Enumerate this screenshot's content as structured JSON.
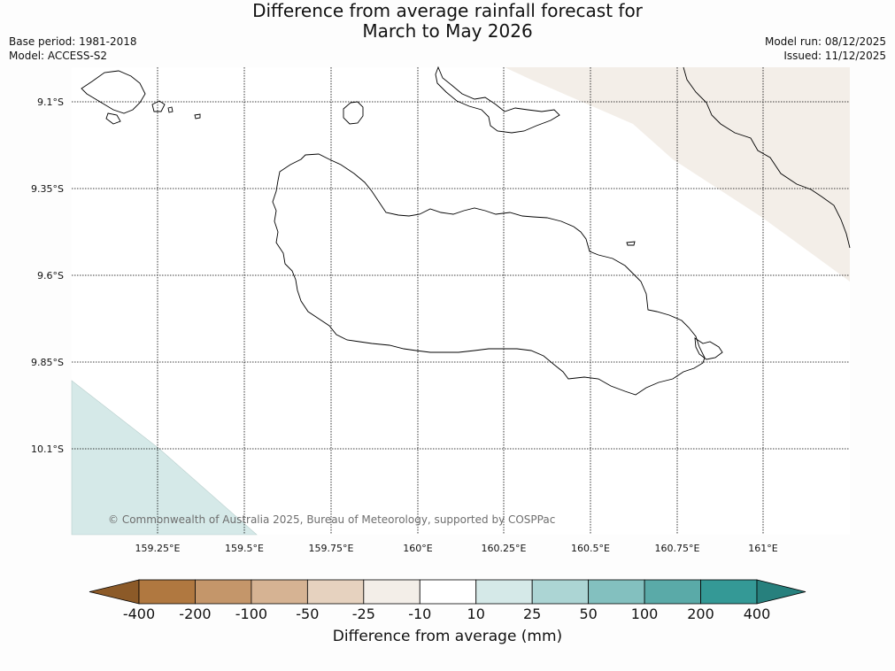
{
  "title": {
    "line1": "Difference from average rainfall forecast for",
    "line2": "March to May 2026"
  },
  "meta": {
    "base_period": "Base period: 1981-2018",
    "model": "Model: ACCESS-S2",
    "model_run": "Model run: 08/12/2025",
    "issued": "Issued: 11/12/2025"
  },
  "map": {
    "lat_labels": [
      "9.1°S",
      "9.35°S",
      "9.6°S",
      "9.85°S",
      "10.1°S"
    ],
    "lon_labels": [
      "159.25°E",
      "159.5°E",
      "159.75°E",
      "160°E",
      "160.25°E",
      "160.5°E",
      "160.75°E",
      "161°E"
    ],
    "shading": [
      {
        "category": "-25 to -10",
        "color": "#f3eee8",
        "region": "north-east"
      },
      {
        "category": "10 to 25",
        "color": "#d5e9e8",
        "region": "south-west"
      }
    ],
    "copyright": "© Commonwealth of Australia 2025, Bureau of Meteorology, supported by COSPPac"
  },
  "colorbar": {
    "label": "Difference from average (mm)",
    "ticks": [
      "-400",
      "-200",
      "-100",
      "-50",
      "-25",
      "-10",
      "10",
      "25",
      "50",
      "100",
      "200",
      "400"
    ],
    "colors": [
      "#8c5a28",
      "#b07840",
      "#c4966a",
      "#d6b393",
      "#e6d2bf",
      "#f3eee8",
      "#ffffff",
      "#d5e9e8",
      "#acd5d4",
      "#83c0bf",
      "#5aaaa8",
      "#349996",
      "#27807d"
    ]
  }
}
